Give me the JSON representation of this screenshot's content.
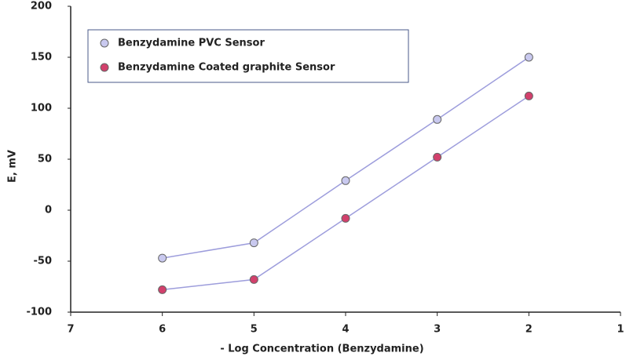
{
  "chart_data": {
    "type": "line",
    "x_label": "- Log Concentration (Benzydamine)",
    "y_label": "E, mV",
    "x": [
      6,
      5,
      4,
      3,
      2
    ],
    "series": [
      {
        "name": "Benzydamine PVC Sensor",
        "color": "#c9c9ef",
        "values": [
          -47,
          -32,
          29,
          89,
          150
        ]
      },
      {
        "name": "Benzydamine Coated graphite Sensor",
        "color": "#d2406c",
        "values": [
          -78,
          -68,
          -8,
          52,
          112
        ]
      }
    ],
    "line_color": "#9d9ddc",
    "xlim": [
      7,
      1
    ],
    "xticks": [
      7,
      6,
      5,
      4,
      3,
      2,
      1
    ],
    "ylim": [
      -100,
      200
    ],
    "yticks": [
      -100,
      -50,
      0,
      50,
      100,
      150,
      200
    ],
    "legend": "upper left"
  }
}
